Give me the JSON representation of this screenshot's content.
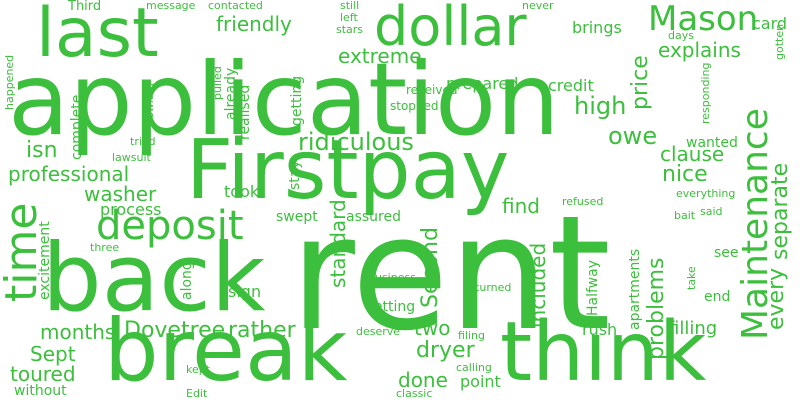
{
  "accent_color": "#3cbf3c",
  "background_color": "#ffffff",
  "words": {
    "rent": "rent",
    "application": "application",
    "back": "back",
    "break": "break",
    "think": "think",
    "firstpay": "Firstpay",
    "last": "last",
    "dollar": "dollar",
    "time": "time",
    "deposit": "deposit",
    "maintenance": "Maintenance",
    "mason": "Mason",
    "ridiculous": "ridiculous",
    "professional": "professional",
    "every": "every",
    "separate": "separate",
    "second": "Second",
    "standard": "standard",
    "included": "included",
    "problems": "problems",
    "dovetree": "Dovetree",
    "rather": "rather",
    "months": "months",
    "sept": "Sept",
    "toured": "toured",
    "dryer": "dryer",
    "done": "done",
    "two": "two",
    "washer": "washer",
    "process": "process",
    "clause": "clause",
    "nice": "nice",
    "high": "high",
    "price": "price",
    "explains": "explains",
    "extreme": "extreme",
    "friendly": "friendly",
    "owe": "owe",
    "isn": "isn",
    "find": "find",
    "filling": "filling",
    "wanted": "wanted",
    "prepared": "prepared",
    "credit": "credit",
    "brings": "brings",
    "card": "card",
    "third": "Third",
    "message": "message",
    "contacted": "contacted",
    "still": "still",
    "left": "left",
    "stars": "stars",
    "never": "never",
    "gotten": "gotten",
    "days": "days",
    "responding": "responding",
    "happened": "happened",
    "pulled": "pulled",
    "switch": "switch",
    "complete": "complete",
    "already": "already",
    "realised": "realised",
    "getting": "getting",
    "received": "received",
    "stopped": "stopped",
    "tried": "tried",
    "lawsuit": "lawsuit",
    "took": "took",
    "stay": "stay",
    "swept": "swept",
    "assured": "assured",
    "refused": "refused",
    "everything": "everything",
    "bait": "bait",
    "said": "said",
    "excitement": "excitement",
    "three": "three",
    "along": "along",
    "sign": "sign",
    "business": "business",
    "returned": "returned",
    "letting": "letting",
    "halfway": "Halfway",
    "apartments": "apartments",
    "see": "see",
    "take": "take",
    "end": "end",
    "deserve": "deserve",
    "filing": "filing",
    "rush": "rush",
    "calling": "calling",
    "point": "point",
    "kept": "kept",
    "without": "without",
    "edit": "Edit",
    "classic": "classic"
  }
}
